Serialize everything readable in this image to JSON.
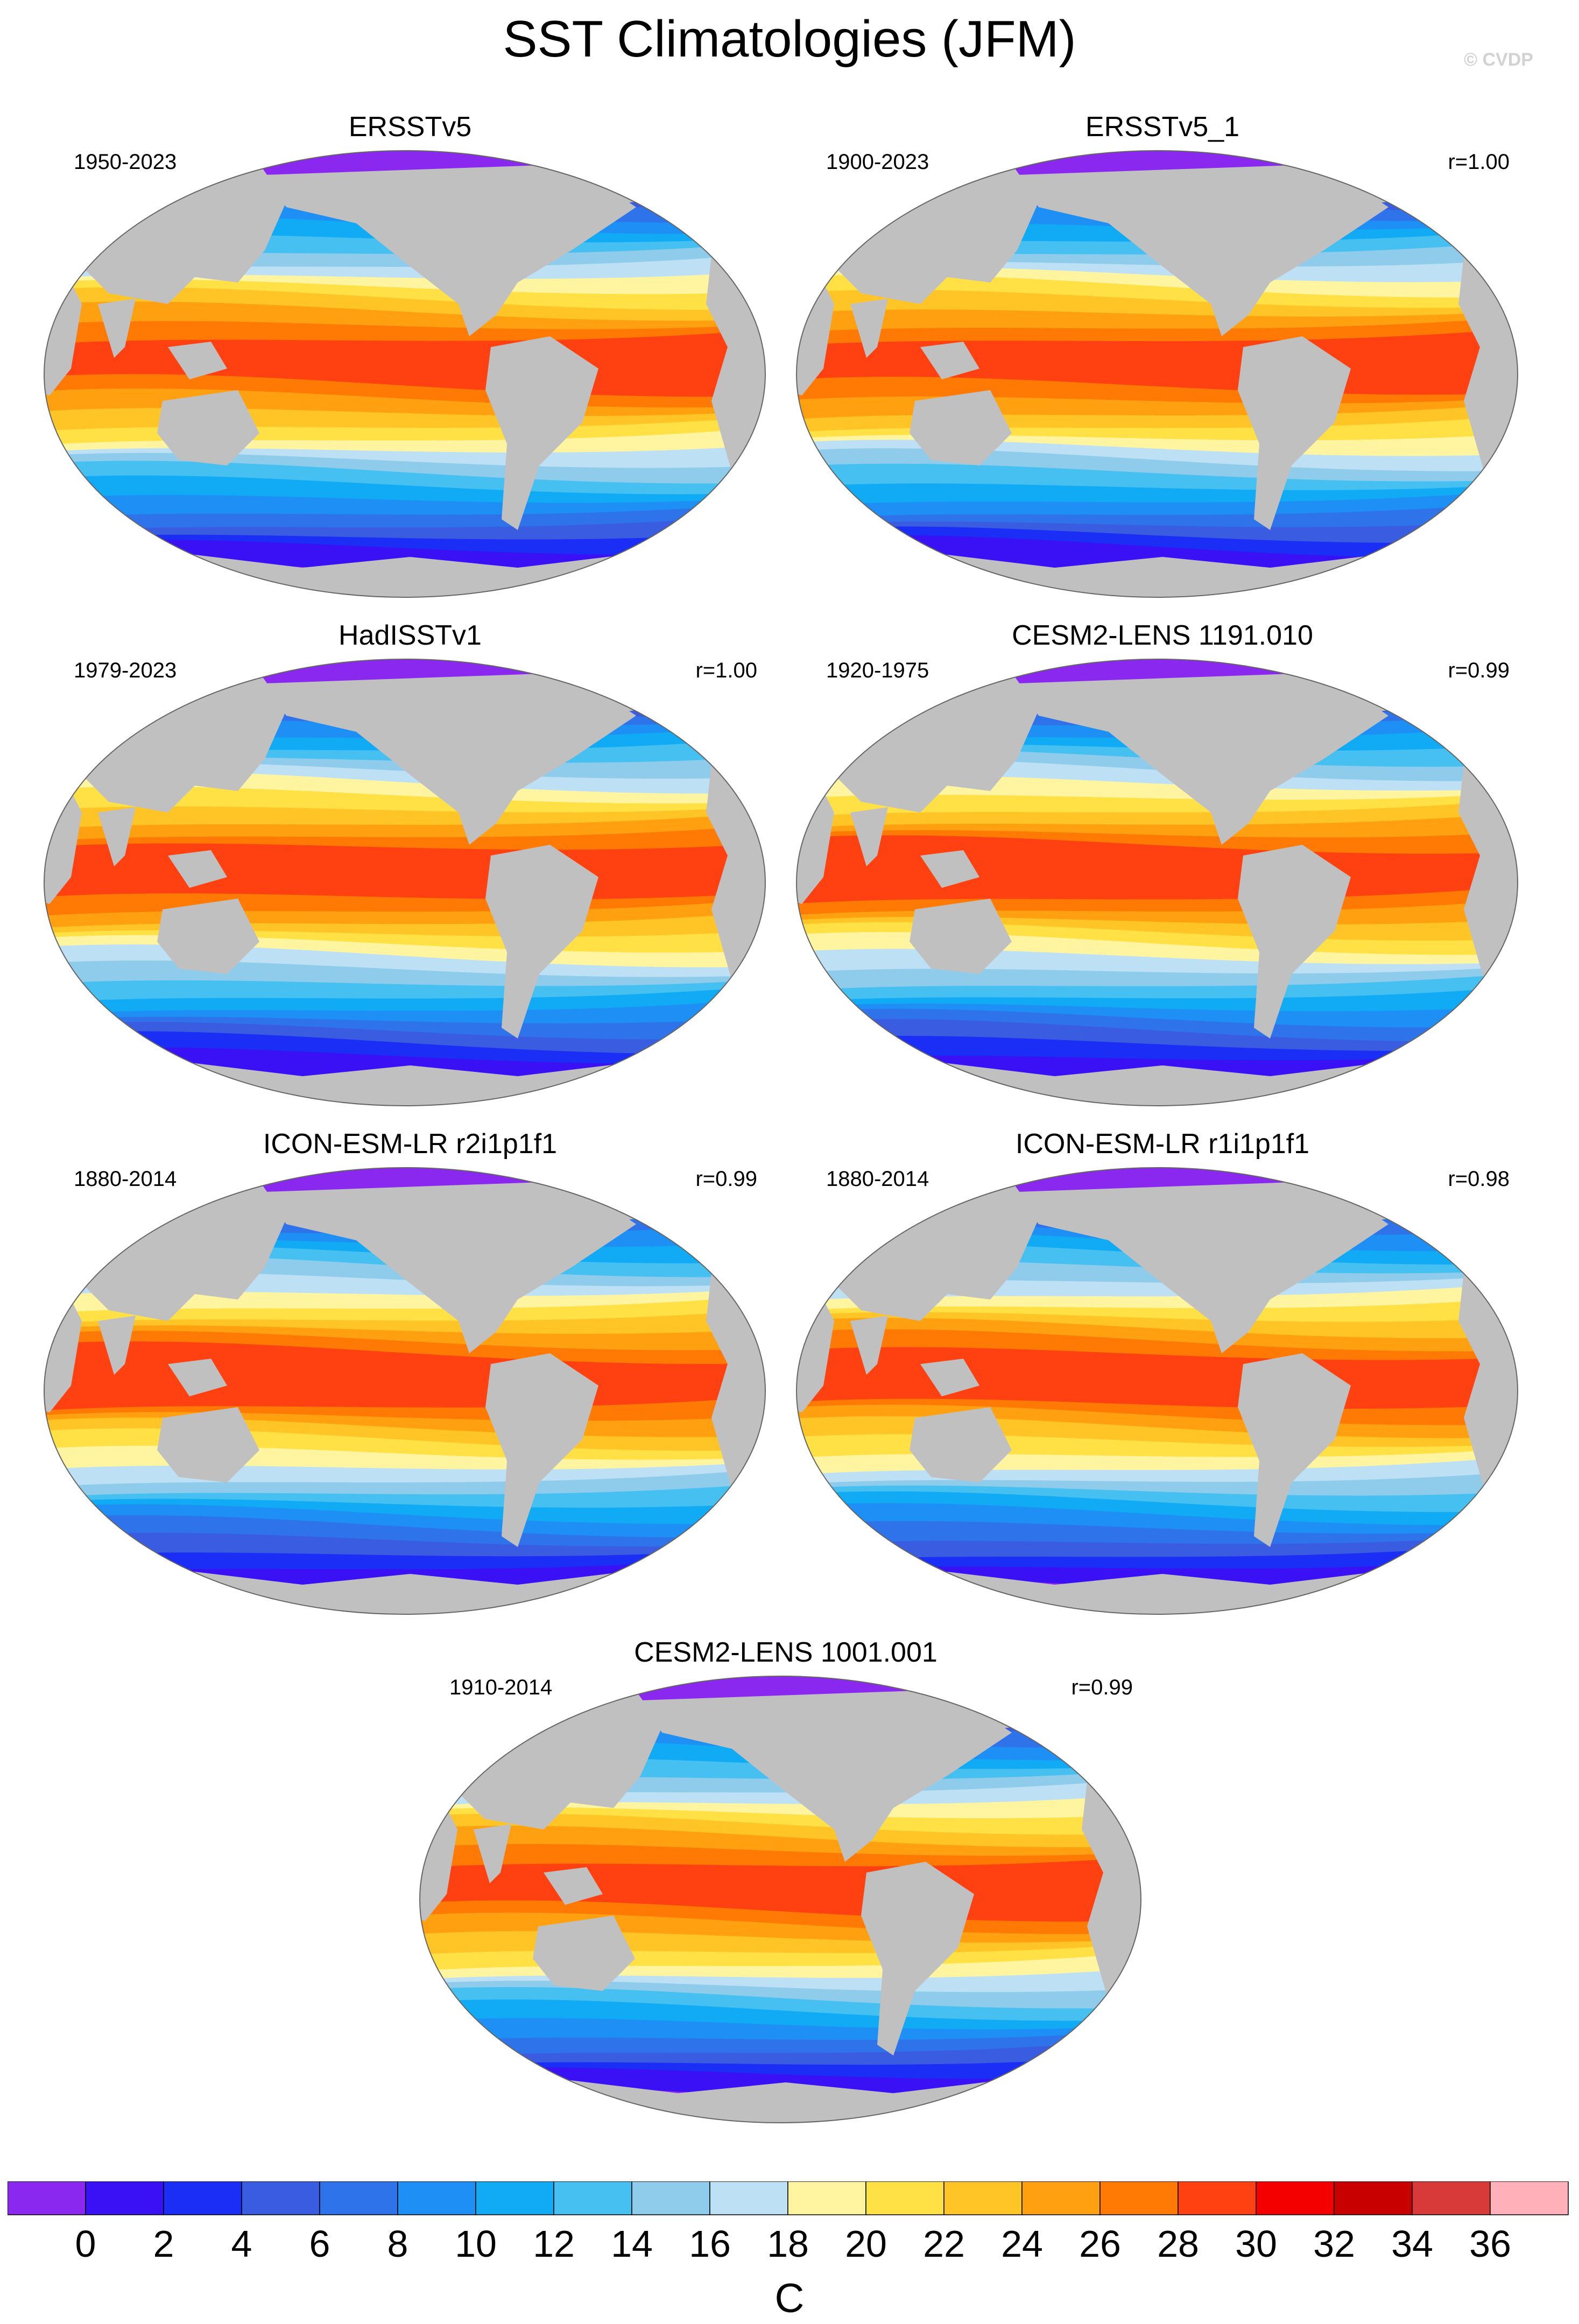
{
  "title": "SST Climatologies (JFM)",
  "watermark": "© CVDP",
  "panels": [
    {
      "title": "ERSSTv5",
      "years": "1950-2023",
      "r": ""
    },
    {
      "title": "ERSSTv5_1",
      "years": "1900-2023",
      "r": "r=1.00"
    },
    {
      "title": "HadISSTv1",
      "years": "1979-2023",
      "r": "r=1.00"
    },
    {
      "title": "CESM2-LENS 1191.010",
      "years": "1920-1975",
      "r": "r=0.99"
    },
    {
      "title": "ICON-ESM-LR r2i1p1f1",
      "years": "1880-2014",
      "r": "r=0.99"
    },
    {
      "title": "ICON-ESM-LR r1i1p1f1",
      "years": "1880-2014",
      "r": "r=0.98"
    },
    {
      "title": "CESM2-LENS 1001.001",
      "years": "1910-2014",
      "r": "r=0.99"
    }
  ],
  "colorbar": {
    "unit": "C",
    "tick_labels": [
      "0",
      "2",
      "4",
      "6",
      "8",
      "10",
      "12",
      "14",
      "16",
      "18",
      "20",
      "22",
      "24",
      "26",
      "28",
      "30",
      "32",
      "34",
      "36"
    ],
    "colors": [
      "#8a28f0",
      "#3a10f4",
      "#1a2ef5",
      "#3a5ce0",
      "#2f73ea",
      "#1e8ff5",
      "#10aaf5",
      "#45c0f0",
      "#8fccec",
      "#bde0f5",
      "#fff5a0",
      "#ffe045",
      "#ffc425",
      "#ffa010",
      "#ff7a05",
      "#ff4010",
      "#f50000",
      "#c80000",
      "#d83a3a",
      "#ffb0b8"
    ]
  },
  "land_color": "#c0c0c0"
}
